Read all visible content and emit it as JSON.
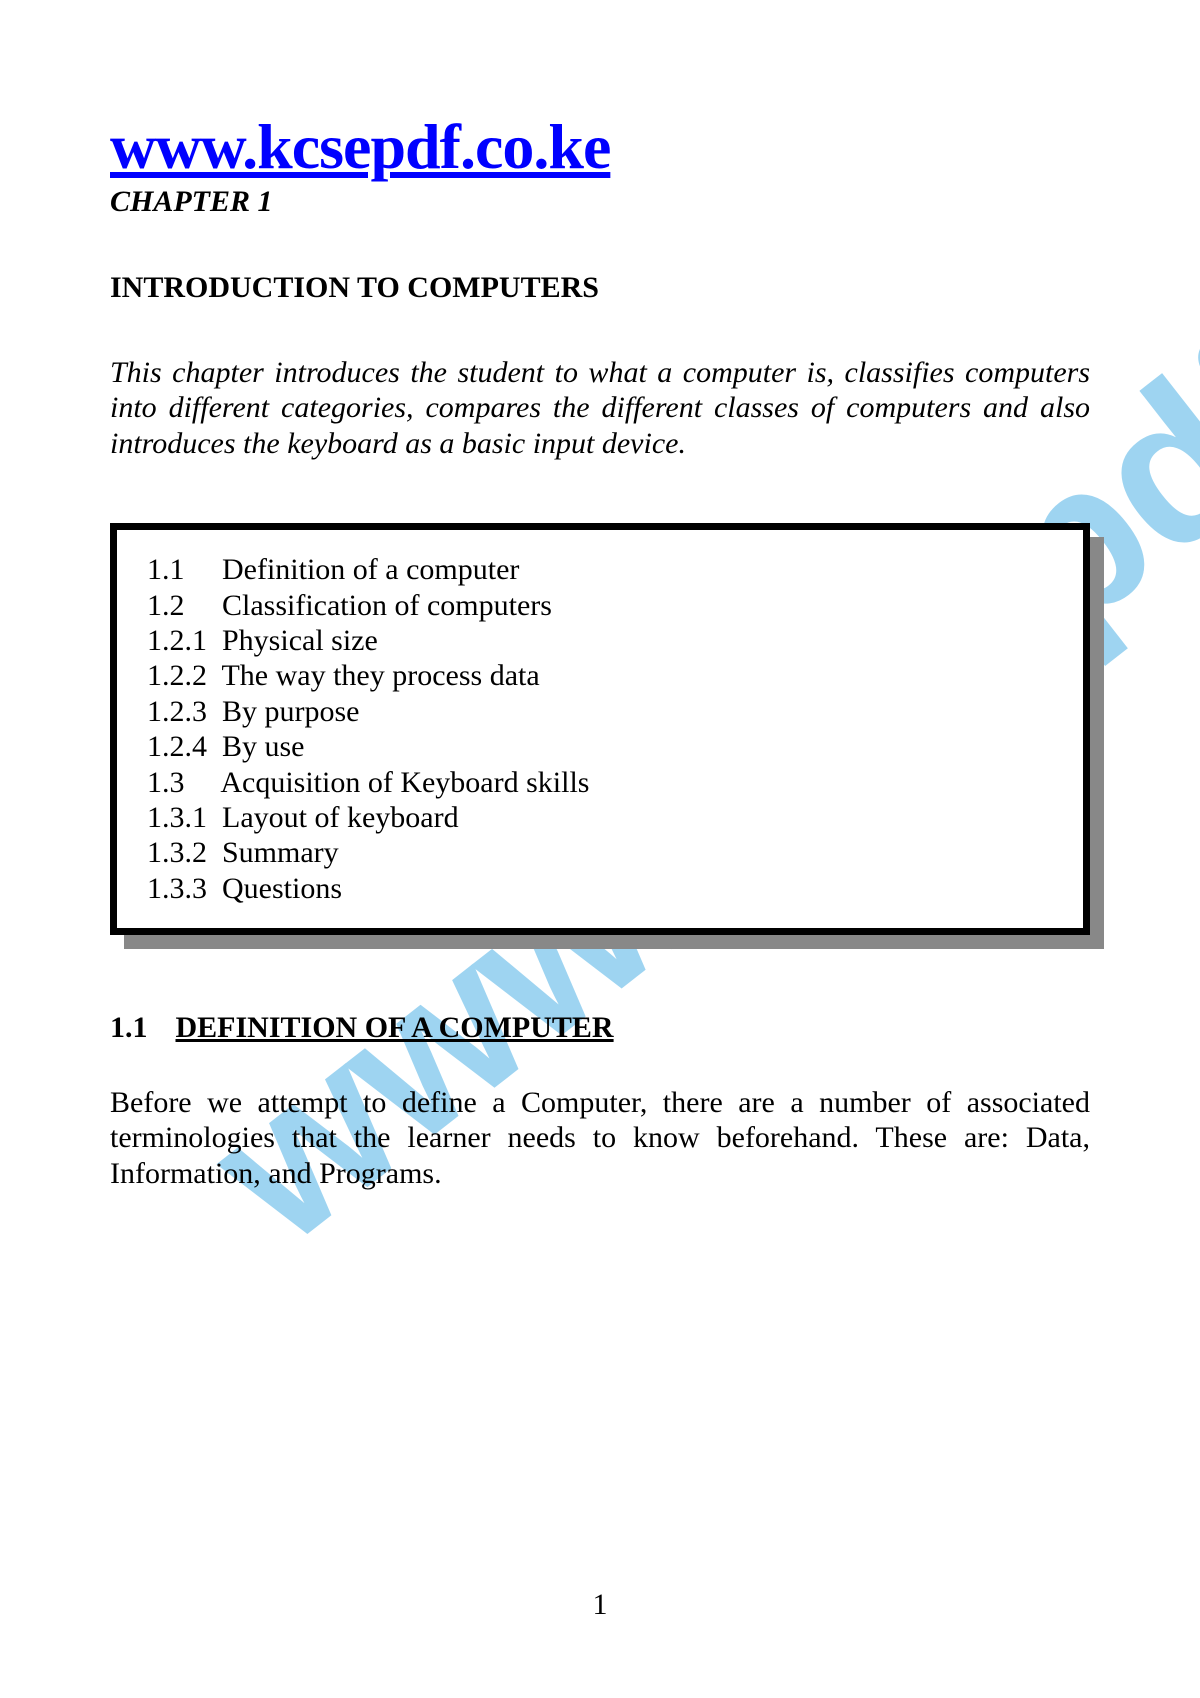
{
  "watermark": "www.kcsepdf.co.ke",
  "header": {
    "url": "www.kcsepdf.co.ke",
    "chapter_label": "CHAPTER 1",
    "chapter_title": "INTRODUCTION TO COMPUTERS"
  },
  "intro": "This chapter introduces the student to what a computer is, classifies computers into different categories, compares the different classes of computers and also introduces the keyboard as a basic input device.",
  "toc": [
    "1.1     Definition of a computer",
    "1.2     Classification of computers",
    "1.2.1  Physical size",
    "1.2.2  The way they process data",
    "1.2.3  By purpose",
    "1.2.4  By use",
    "1.3     Acquisition of Keyboard skills",
    "1.3.1  Layout of keyboard",
    "1.3.2  Summary",
    "1.3.3  Questions"
  ],
  "section": {
    "num": "1.1",
    "title": "DEFINITION OF A COMPUTER"
  },
  "body": "Before we attempt to define a Computer, there are a number of associated terminologies that the learner needs to know beforehand. These are: Data, Information, and Programs.",
  "page_number": "1",
  "colors": {
    "link": "#0000ff",
    "watermark": "#5fb9e8",
    "text": "#000000",
    "shadow": "#888888",
    "background": "#ffffff"
  }
}
